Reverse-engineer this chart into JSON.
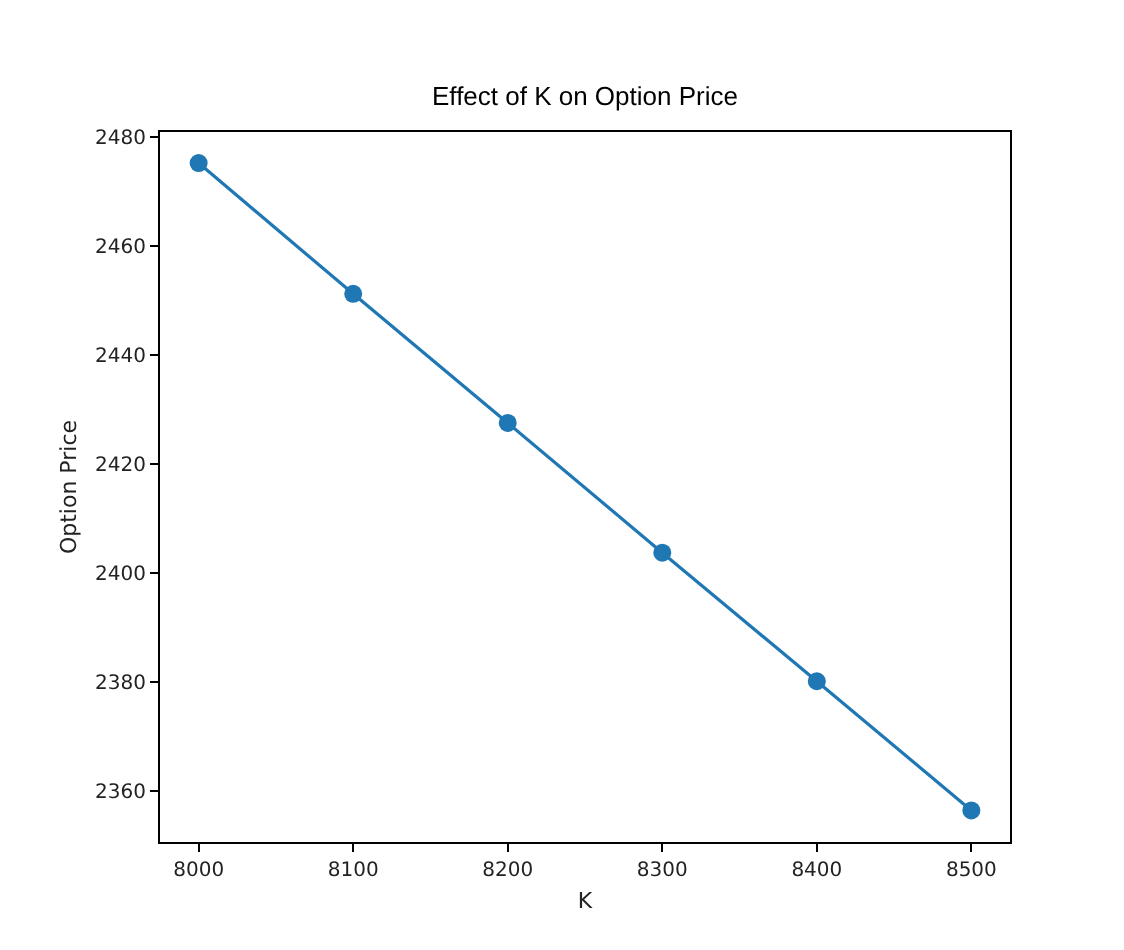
{
  "chart_data": {
    "type": "line",
    "title": "Effect of K on Option Price",
    "xlabel": "K",
    "ylabel": "Option Price",
    "x": [
      8000,
      8100,
      8200,
      8300,
      8400,
      8500
    ],
    "series": [
      {
        "color": "#1f77b4",
        "values": [
          2475.3,
          2451.3,
          2427.6,
          2403.8,
          2380.2,
          2356.5
        ]
      }
    ],
    "xlim": [
      7975,
      8525
    ],
    "ylim": [
      2350.7,
      2481
    ],
    "xticks": [
      8000,
      8100,
      8200,
      8300,
      8400,
      8500
    ],
    "yticks": [
      2360,
      2380,
      2400,
      2420,
      2440,
      2460,
      2480
    ],
    "marker": "circle",
    "line_style": "solid"
  }
}
